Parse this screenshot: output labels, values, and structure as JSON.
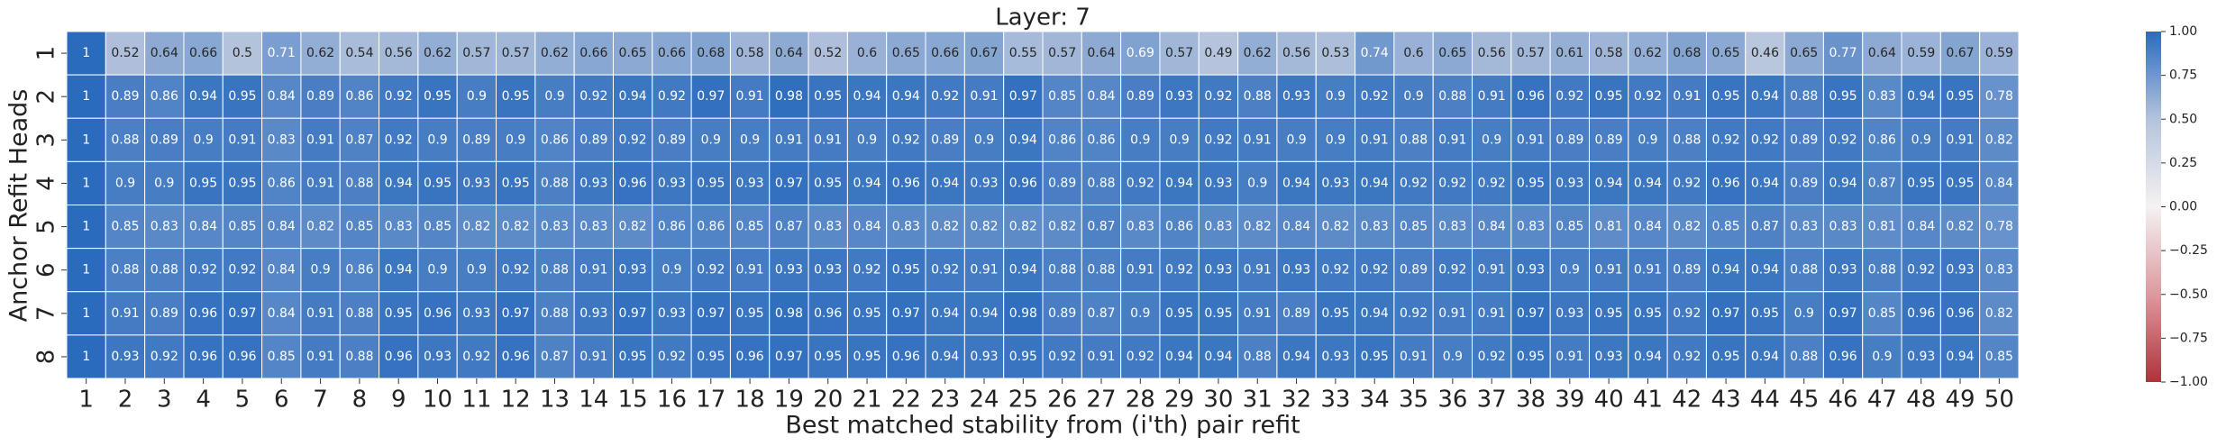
{
  "chart_data": {
    "type": "heatmap",
    "title": "Layer: 7",
    "x_label": "Best matched stability from (i'th) pair refit",
    "y_label": "Anchor Refit Heads",
    "x": [
      1,
      2,
      3,
      4,
      5,
      6,
      7,
      8,
      9,
      10,
      11,
      12,
      13,
      14,
      15,
      16,
      17,
      18,
      19,
      20,
      21,
      22,
      23,
      24,
      25,
      26,
      27,
      28,
      29,
      30,
      31,
      32,
      33,
      34,
      35,
      36,
      37,
      38,
      39,
      40,
      41,
      42,
      43,
      44,
      45,
      46,
      47,
      48,
      49,
      50
    ],
    "y": [
      1,
      2,
      3,
      4,
      5,
      6,
      7,
      8
    ],
    "values": [
      [
        1,
        0.52,
        0.64,
        0.66,
        0.5,
        0.71,
        0.62,
        0.54,
        0.56,
        0.62,
        0.57,
        0.57,
        0.62,
        0.66,
        0.65,
        0.66,
        0.68,
        0.58,
        0.64,
        0.52,
        0.6,
        0.65,
        0.66,
        0.67,
        0.55,
        0.57,
        0.64,
        0.69,
        0.57,
        0.49,
        0.62,
        0.56,
        0.53,
        0.74,
        0.6,
        0.65,
        0.56,
        0.57,
        0.61,
        0.58,
        0.62,
        0.68,
        0.65,
        0.46,
        0.65,
        0.77,
        0.64,
        0.59,
        0.67,
        0.59
      ],
      [
        1,
        0.89,
        0.86,
        0.94,
        0.95,
        0.84,
        0.89,
        0.86,
        0.92,
        0.95,
        0.9,
        0.95,
        0.9,
        0.92,
        0.94,
        0.92,
        0.97,
        0.91,
        0.98,
        0.95,
        0.94,
        0.94,
        0.92,
        0.91,
        0.97,
        0.85,
        0.84,
        0.89,
        0.93,
        0.92,
        0.88,
        0.93,
        0.9,
        0.92,
        0.9,
        0.88,
        0.91,
        0.96,
        0.92,
        0.95,
        0.92,
        0.91,
        0.95,
        0.94,
        0.88,
        0.95,
        0.83,
        0.94,
        0.95,
        0.78
      ],
      [
        1,
        0.88,
        0.89,
        0.9,
        0.91,
        0.83,
        0.91,
        0.87,
        0.92,
        0.9,
        0.89,
        0.9,
        0.86,
        0.89,
        0.92,
        0.89,
        0.9,
        0.9,
        0.91,
        0.91,
        0.9,
        0.92,
        0.89,
        0.9,
        0.94,
        0.86,
        0.86,
        0.9,
        0.9,
        0.92,
        0.91,
        0.9,
        0.9,
        0.91,
        0.88,
        0.91,
        0.9,
        0.91,
        0.89,
        0.89,
        0.9,
        0.88,
        0.92,
        0.92,
        0.89,
        0.92,
        0.86,
        0.9,
        0.91,
        0.82
      ],
      [
        1,
        0.9,
        0.9,
        0.95,
        0.95,
        0.86,
        0.91,
        0.88,
        0.94,
        0.95,
        0.93,
        0.95,
        0.88,
        0.93,
        0.96,
        0.93,
        0.95,
        0.93,
        0.97,
        0.95,
        0.94,
        0.96,
        0.94,
        0.93,
        0.96,
        0.89,
        0.88,
        0.92,
        0.94,
        0.93,
        0.9,
        0.94,
        0.93,
        0.94,
        0.92,
        0.92,
        0.92,
        0.95,
        0.93,
        0.94,
        0.94,
        0.92,
        0.96,
        0.94,
        0.89,
        0.94,
        0.87,
        0.95,
        0.95,
        0.84
      ],
      [
        1,
        0.85,
        0.83,
        0.84,
        0.85,
        0.84,
        0.82,
        0.85,
        0.83,
        0.85,
        0.82,
        0.82,
        0.83,
        0.83,
        0.82,
        0.86,
        0.86,
        0.85,
        0.87,
        0.83,
        0.84,
        0.83,
        0.82,
        0.82,
        0.82,
        0.82,
        0.87,
        0.83,
        0.86,
        0.83,
        0.82,
        0.84,
        0.82,
        0.83,
        0.85,
        0.83,
        0.84,
        0.83,
        0.85,
        0.81,
        0.84,
        0.82,
        0.85,
        0.87,
        0.83,
        0.83,
        0.81,
        0.84,
        0.82,
        0.78
      ],
      [
        1,
        0.88,
        0.88,
        0.92,
        0.92,
        0.84,
        0.9,
        0.86,
        0.94,
        0.9,
        0.9,
        0.92,
        0.88,
        0.91,
        0.93,
        0.9,
        0.92,
        0.91,
        0.93,
        0.93,
        0.92,
        0.95,
        0.92,
        0.91,
        0.94,
        0.88,
        0.88,
        0.91,
        0.92,
        0.93,
        0.91,
        0.93,
        0.92,
        0.92,
        0.89,
        0.92,
        0.91,
        0.93,
        0.9,
        0.91,
        0.91,
        0.89,
        0.94,
        0.94,
        0.88,
        0.93,
        0.88,
        0.92,
        0.93,
        0.83
      ],
      [
        1,
        0.91,
        0.89,
        0.96,
        0.97,
        0.84,
        0.91,
        0.88,
        0.95,
        0.96,
        0.93,
        0.97,
        0.88,
        0.93,
        0.97,
        0.93,
        0.97,
        0.95,
        0.98,
        0.96,
        0.95,
        0.97,
        0.94,
        0.94,
        0.98,
        0.89,
        0.87,
        0.9,
        0.95,
        0.95,
        0.91,
        0.89,
        0.95,
        0.94,
        0.92,
        0.91,
        0.91,
        0.97,
        0.93,
        0.95,
        0.95,
        0.92,
        0.97,
        0.95,
        0.9,
        0.97,
        0.85,
        0.96,
        0.96,
        0.82
      ],
      [
        1,
        0.93,
        0.92,
        0.96,
        0.96,
        0.85,
        0.91,
        0.88,
        0.96,
        0.93,
        0.92,
        0.96,
        0.87,
        0.91,
        0.95,
        0.92,
        0.95,
        0.96,
        0.97,
        0.95,
        0.95,
        0.96,
        0.94,
        0.93,
        0.95,
        0.92,
        0.91,
        0.92,
        0.94,
        0.94,
        0.88,
        0.94,
        0.93,
        0.95,
        0.91,
        0.9,
        0.92,
        0.95,
        0.91,
        0.93,
        0.94,
        0.92,
        0.95,
        0.94,
        0.88,
        0.96,
        0.9,
        0.93,
        0.94,
        0.85
      ]
    ],
    "colormap": [
      {
        "value": -1,
        "color": "#b2313b"
      },
      {
        "value": -0.5,
        "color": "#dc9a9e"
      },
      {
        "value": 0,
        "color": "#f4f2f2"
      },
      {
        "value": 0.5,
        "color": "#b4c3dc"
      },
      {
        "value": 1,
        "color": "#2b6bbd"
      }
    ],
    "clim": [
      -1,
      1
    ],
    "cticks": [
      {
        "value": 1,
        "label": "1.00"
      },
      {
        "value": 0.75,
        "label": "0.75"
      },
      {
        "value": 0.5,
        "label": "0.50"
      },
      {
        "value": 0.25,
        "label": "0.25"
      },
      {
        "value": 0,
        "label": "0.00"
      },
      {
        "value": -0.25,
        "label": "−0.25"
      },
      {
        "value": -0.5,
        "label": "−0.50"
      },
      {
        "value": -0.75,
        "label": "−0.75"
      },
      {
        "value": -1,
        "label": "−1.00"
      }
    ]
  }
}
